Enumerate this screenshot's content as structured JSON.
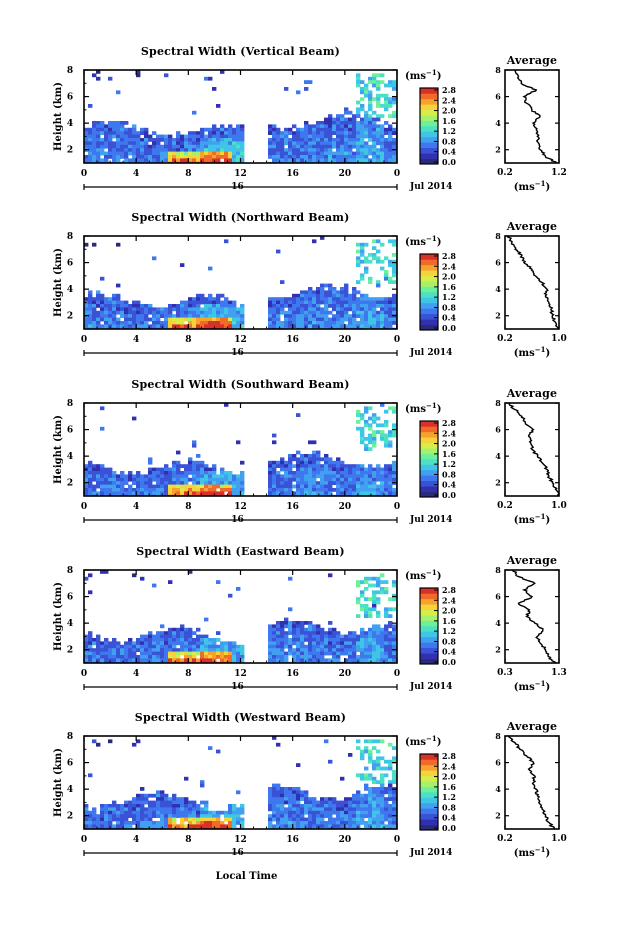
{
  "figure": {
    "xlabel": "Local Time"
  },
  "colors": {
    "palette": [
      "#2a2a7a",
      "#3030b0",
      "#3a52d6",
      "#3f78ee",
      "#41a0f0",
      "#3fc6e6",
      "#4ce0c4",
      "#6ef09a",
      "#a6f16a",
      "#d8ec4a",
      "#f6d33a",
      "#f8a22e",
      "#f06a28",
      "#d8302a"
    ]
  },
  "colorbar": {
    "unit": "(ms",
    "unit_exp": "−1",
    "unit_close": ")",
    "ticks": [
      "0.0",
      "0.4",
      "0.8",
      "1.2",
      "1.6",
      "2.0",
      "2.4",
      "2.8"
    ]
  },
  "chart_data": [
    {
      "type": "heatmap",
      "title": "Spectral Width (Vertical Beam)",
      "ylabel": "Height (km)",
      "yticks": [
        "2",
        "4",
        "6",
        "8"
      ],
      "xticks": [
        "0",
        "4",
        "8",
        "12",
        "16",
        "20",
        "0"
      ],
      "date_tick": "16",
      "date_label": "Jul 2014",
      "xlim": [
        0,
        24
      ],
      "ylim": [
        1,
        8
      ],
      "gap": [
        12.3,
        14.1
      ],
      "colorbar_range": [
        0,
        2.8
      ],
      "avg_title": "Average",
      "avg_xticks": [
        "0.2",
        "1.2"
      ],
      "avg_xlim": [
        0.2,
        1.2
      ],
      "avg_xlabel": "(ms",
      "avg_xlabel_exp": "−1",
      "avg_xlabel_close": ")",
      "average_profile": {
        "height": [
          1.0,
          1.5,
          2.0,
          2.5,
          3.0,
          3.5,
          4.0,
          4.5,
          5.0,
          5.5,
          6.0,
          6.5,
          7.0,
          7.5,
          8.0
        ],
        "width": [
          1.15,
          0.95,
          0.85,
          0.82,
          0.8,
          0.78,
          0.72,
          0.85,
          0.7,
          0.6,
          0.55,
          0.78,
          0.5,
          0.45,
          0.4
        ]
      }
    },
    {
      "type": "heatmap",
      "title": "Spectral Width (Northward Beam)",
      "ylabel": "Height (km)",
      "yticks": [
        "2",
        "4",
        "6",
        "8"
      ],
      "xticks": [
        "0",
        "4",
        "8",
        "12",
        "16",
        "20",
        "0"
      ],
      "date_tick": "16",
      "date_label": "Jul 2014",
      "xlim": [
        0,
        24
      ],
      "ylim": [
        1,
        8
      ],
      "gap": [
        12.3,
        14.1
      ],
      "colorbar_range": [
        0,
        2.8
      ],
      "avg_title": "Average",
      "avg_xticks": [
        "0.2",
        "1.0"
      ],
      "avg_xlim": [
        0.2,
        1.0
      ],
      "avg_xlabel": "(ms",
      "avg_xlabel_exp": "−1",
      "avg_xlabel_close": ")",
      "average_profile": {
        "height": [
          1.0,
          1.5,
          2.0,
          2.5,
          3.0,
          3.5,
          4.0,
          4.5,
          5.0,
          5.5,
          6.0,
          6.5,
          7.0,
          7.5,
          8.0
        ],
        "width": [
          1.0,
          0.95,
          0.9,
          0.88,
          0.85,
          0.8,
          0.82,
          0.75,
          0.65,
          0.6,
          0.48,
          0.45,
          0.35,
          0.3,
          0.25
        ]
      }
    },
    {
      "type": "heatmap",
      "title": "Spectral Width (Southward Beam)",
      "ylabel": "Height (km)",
      "yticks": [
        "2",
        "4",
        "6",
        "8"
      ],
      "xticks": [
        "0",
        "4",
        "8",
        "12",
        "16",
        "20",
        "0"
      ],
      "date_tick": "16",
      "date_label": "Jul 2014",
      "xlim": [
        0,
        24
      ],
      "ylim": [
        1,
        8
      ],
      "gap": [
        12.3,
        14.1
      ],
      "colorbar_range": [
        0,
        2.8
      ],
      "avg_title": "Average",
      "avg_xticks": [
        "0.2",
        "1.0"
      ],
      "avg_xlim": [
        0.2,
        1.0
      ],
      "avg_xlabel": "(ms",
      "avg_xlabel_exp": "−1",
      "avg_xlabel_close": ")",
      "average_profile": {
        "height": [
          1.0,
          1.5,
          2.0,
          2.5,
          3.0,
          3.5,
          4.0,
          4.5,
          5.0,
          5.5,
          6.0,
          6.5,
          7.0,
          7.5,
          8.0
        ],
        "width": [
          1.0,
          0.95,
          0.9,
          0.85,
          0.82,
          0.75,
          0.68,
          0.6,
          0.58,
          0.55,
          0.62,
          0.5,
          0.45,
          0.35,
          0.25
        ]
      }
    },
    {
      "type": "heatmap",
      "title": "Spectral Width (Eastward Beam)",
      "ylabel": "Height (km)",
      "yticks": [
        "2",
        "4",
        "6",
        "8"
      ],
      "xticks": [
        "0",
        "4",
        "8",
        "12",
        "16",
        "20",
        "0"
      ],
      "date_tick": "16",
      "date_label": "Jul 2014",
      "xlim": [
        0,
        24
      ],
      "ylim": [
        1,
        8
      ],
      "gap": [
        12.3,
        14.1
      ],
      "colorbar_range": [
        0,
        2.8
      ],
      "avg_title": "Average",
      "avg_xticks": [
        "0.3",
        "1.3"
      ],
      "avg_xlim": [
        0.3,
        1.3
      ],
      "avg_xlabel": "(ms",
      "avg_xlabel_exp": "−1",
      "avg_xlabel_close": ")",
      "average_profile": {
        "height": [
          1.0,
          1.5,
          2.0,
          2.5,
          3.0,
          3.5,
          4.0,
          4.5,
          5.0,
          5.5,
          6.0,
          6.5,
          7.0,
          7.5,
          8.0
        ],
        "width": [
          1.25,
          1.1,
          1.05,
          0.95,
          0.9,
          1.0,
          0.85,
          0.7,
          0.75,
          0.55,
          0.8,
          0.65,
          0.85,
          0.55,
          0.45
        ]
      }
    },
    {
      "type": "heatmap",
      "title": "Spectral Width (Westward Beam)",
      "ylabel": "Height (km)",
      "yticks": [
        "2",
        "4",
        "6",
        "8"
      ],
      "xticks": [
        "0",
        "4",
        "8",
        "12",
        "16",
        "20",
        "0"
      ],
      "date_tick": "16",
      "date_label": "Jul 2014",
      "xlim": [
        0,
        24
      ],
      "ylim": [
        1,
        8
      ],
      "gap": [
        12.3,
        14.1
      ],
      "colorbar_range": [
        0,
        2.8
      ],
      "avg_title": "Average",
      "avg_xticks": [
        "0.2",
        "1.0"
      ],
      "avg_xlim": [
        0.2,
        1.0
      ],
      "avg_xlabel": "(ms",
      "avg_xlabel_exp": "−1",
      "avg_xlabel_close": ")",
      "average_profile": {
        "height": [
          1.0,
          1.5,
          2.0,
          2.5,
          3.0,
          3.5,
          4.0,
          4.5,
          5.0,
          5.5,
          6.0,
          6.5,
          7.0,
          7.5,
          8.0
        ],
        "width": [
          0.92,
          0.85,
          0.8,
          0.75,
          0.7,
          0.68,
          0.66,
          0.62,
          0.64,
          0.55,
          0.62,
          0.52,
          0.42,
          0.35,
          0.25
        ]
      }
    }
  ]
}
